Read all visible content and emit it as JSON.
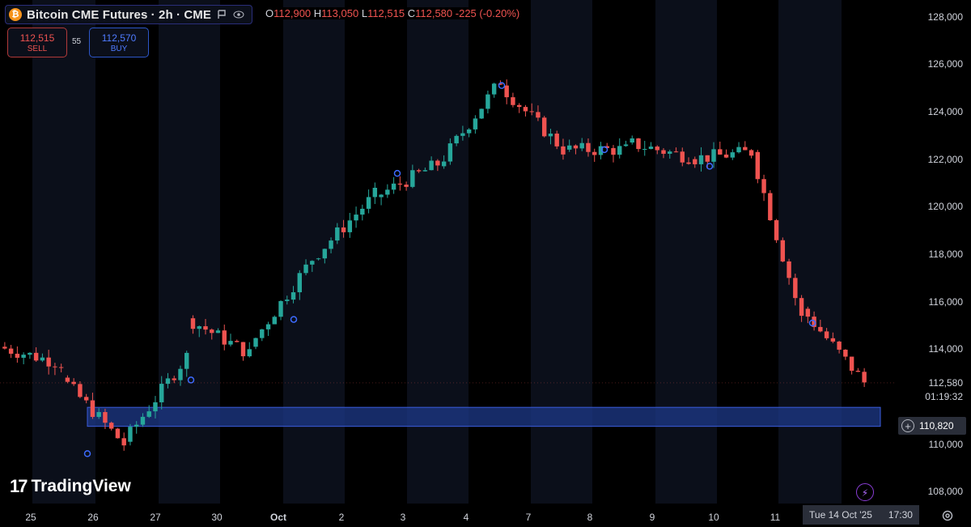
{
  "header": {
    "coin_icon": "bitcoin-icon",
    "title": "Bitcoin CME Futures · 2h · CME",
    "ohlc": {
      "o_label": "O",
      "o": "112,900",
      "h_label": "H",
      "h": "113,050",
      "l_label": "L",
      "l": "112,515",
      "c_label": "C",
      "c": "112,580",
      "change": "-225 (-0.20%)"
    }
  },
  "trade": {
    "sell_price": "112,515",
    "sell_label": "SELL",
    "spread": "55",
    "buy_price": "112,570",
    "buy_label": "BUY"
  },
  "branding": {
    "logo_mark": "17",
    "logo_text": "TradingView"
  },
  "price_axis": {
    "labels": [
      "128,000",
      "126,000",
      "124,000",
      "122,000",
      "120,000",
      "118,000",
      "116,000",
      "114,000",
      "112,580",
      "110,000",
      "108,000"
    ],
    "current_price": "112,580",
    "countdown": "01:19:32",
    "highlight_price": "110,820"
  },
  "time_axis": {
    "labels": [
      "25",
      "26",
      "27",
      "30",
      "Oct",
      "2",
      "3",
      "4",
      "7",
      "8",
      "9",
      "10",
      "11"
    ]
  },
  "cursor": {
    "date": "Tue 14 Oct '25",
    "time": "17:30"
  },
  "colors": {
    "up": "#26a69a",
    "down": "#ef5350",
    "zone": "#1e3a8a",
    "zone_border": "#3b5bdb",
    "bg": "#000000",
    "session_band": "#0b0f1a"
  },
  "chart_data": {
    "type": "candlestick",
    "title": "Bitcoin CME Futures · 2h · CME",
    "ylim": [
      107500,
      128700
    ],
    "y_ticks": [
      108000,
      110000,
      112000,
      114000,
      116000,
      118000,
      120000,
      122000,
      124000,
      126000,
      128000
    ],
    "zone": {
      "low": 110750,
      "high": 111550
    },
    "last_price": 112580,
    "sessions": [
      {
        "label": "25",
        "count": 10,
        "start": 114100,
        "drift": -700
      },
      {
        "label": "26",
        "count": 10,
        "start": 112800,
        "drift": -2800
      },
      {
        "label": "27",
        "count": 10,
        "start": 110100,
        "drift": 3600
      },
      {
        "label": "30",
        "count": 10,
        "start": 115300,
        "drift": -1500
      },
      {
        "label": "Oct",
        "count": 10,
        "start": 114100,
        "drift": 3700
      },
      {
        "label": "2",
        "count": 10,
        "start": 117800,
        "drift": 2700
      },
      {
        "label": "3",
        "count": 10,
        "start": 120400,
        "drift": 1400
      },
      {
        "label": "4",
        "count": 10,
        "start": 121700,
        "drift": 3600
      },
      {
        "label": "7",
        "count": 10,
        "start": 125100,
        "drift": -2700
      },
      {
        "label": "8",
        "count": 10,
        "start": 122400,
        "drift": 0
      },
      {
        "label": "9",
        "count": 10,
        "start": 122700,
        "drift": -600
      },
      {
        "label": "10",
        "count": 10,
        "start": 122000,
        "drift": 300
      },
      {
        "label": "11",
        "count": 8,
        "start": 122300,
        "drift": -7000
      },
      {
        "label": "14",
        "count": 10,
        "start": 115700,
        "drift": -3100
      }
    ],
    "markers": [
      109600,
      112700,
      115250,
      121400,
      125100,
      122400,
      121700,
      115100
    ]
  }
}
